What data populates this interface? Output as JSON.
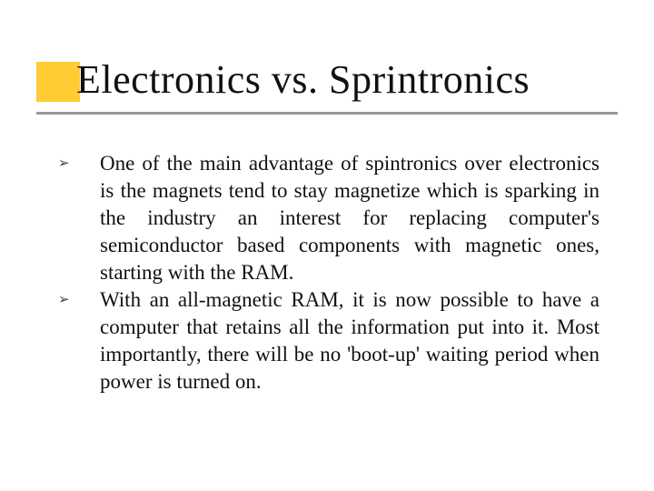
{
  "title": "Electronics vs. Sprintronics",
  "bullets": [
    {
      "marker": "➢",
      "text": "One of the main advantage of spintronics over electronics is the magnets tend to stay magnetize which is sparking in the industry an interest for replacing computer's semiconductor based components with magnetic ones, starting with the RAM."
    },
    {
      "marker": "➢",
      "text": "With an all-magnetic RAM, it is now possible to have a computer that retains all the information put into it. Most importantly, there will be no 'boot-up' waiting period when power is turned on."
    }
  ],
  "style": {
    "accent_color": "#ffcc33",
    "line_color": "#999999",
    "title_fontsize": 44,
    "body_fontsize": 23,
    "body_lineheight": 30,
    "text_color": "#111111",
    "bullet_color": "#444444",
    "background_color": "#ffffff"
  }
}
